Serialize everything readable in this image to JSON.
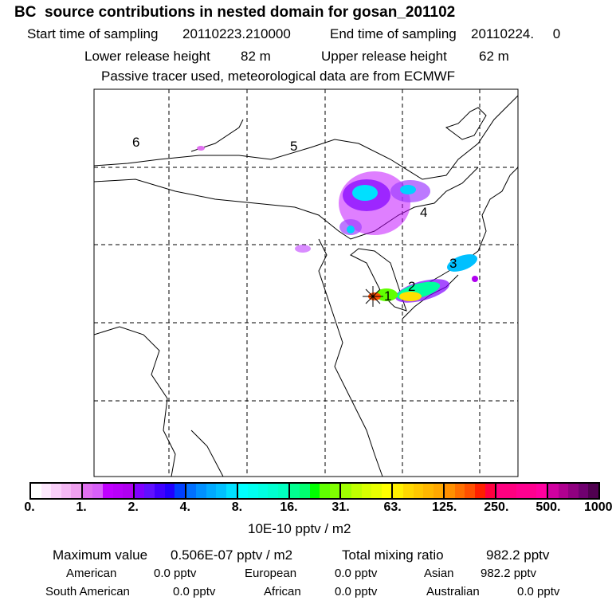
{
  "title": "BC  source contributions in nested domain for gosan_201102",
  "header": {
    "start_label": "Start time of sampling",
    "start_value": "20110223.210000",
    "end_label": "End time of sampling",
    "end_value": "20110224.     0",
    "lower_label": "Lower release height",
    "lower_value": "82 m",
    "upper_label": "Upper release height",
    "upper_value": "62 m",
    "note": "Passive tracer used, meteorological data are from ECMWF"
  },
  "map": {
    "region_labels": [
      "1",
      "2",
      "3",
      "4",
      "5",
      "6"
    ]
  },
  "colorbar": {
    "ticks": [
      "0.",
      "1.",
      "2.",
      "4.",
      "8.",
      "16.",
      "31.",
      "63.",
      "125.",
      "250.",
      "500.",
      "1000."
    ],
    "unit": "10E-10 pptv / m2",
    "segments": [
      [
        "#ffffff",
        "#fde8fd",
        "#f9d0f9",
        "#f4b8f4",
        "#efa0ef"
      ],
      [
        "#e070f0",
        "#d860f8",
        "#c000ff",
        "#b800f8",
        "#b000f0"
      ],
      [
        "#8000ff",
        "#6010ff",
        "#4000ff",
        "#2000ff",
        "#0040ff"
      ],
      [
        "#0070ff",
        "#0090ff",
        "#00aaff",
        "#00c0ff",
        "#00e0ff"
      ],
      [
        "#00ffff",
        "#00fff0",
        "#00ffe0",
        "#00ffd0",
        "#00ffc0"
      ],
      [
        "#00ff90",
        "#00ff70",
        "#00ff00",
        "#60ff00",
        "#80ff00"
      ],
      [
        "#a0ff00",
        "#c0ff00",
        "#d8ff00",
        "#e8ff00",
        "#ffff00"
      ],
      [
        "#fff000",
        "#ffd800",
        "#ffc800",
        "#ffb800",
        "#ffa800"
      ],
      [
        "#ff9000",
        "#ff7000",
        "#ff5000",
        "#ff2000",
        "#ff0040"
      ],
      [
        "#ff0080",
        "#ff0080",
        "#ff0090",
        "#ff0090",
        "#ff00a0"
      ],
      [
        "#d000a0",
        "#b00090",
        "#900080",
        "#700070",
        "#500050"
      ]
    ]
  },
  "summary": {
    "max_label": "Maximum value",
    "max_value": "0.506E-07 pptv / m2",
    "total_label": "Total mixing ratio",
    "total_value": "982.2 pptv",
    "regions": [
      {
        "name": "American",
        "value": "0.0 pptv"
      },
      {
        "name": "European",
        "value": "0.0 pptv"
      },
      {
        "name": "Asian",
        "value": "982.2 pptv"
      },
      {
        "name": "South American",
        "value": "0.0 pptv"
      },
      {
        "name": "African",
        "value": "0.0 pptv"
      },
      {
        "name": "Australian",
        "value": "0.0 pptv"
      }
    ]
  }
}
